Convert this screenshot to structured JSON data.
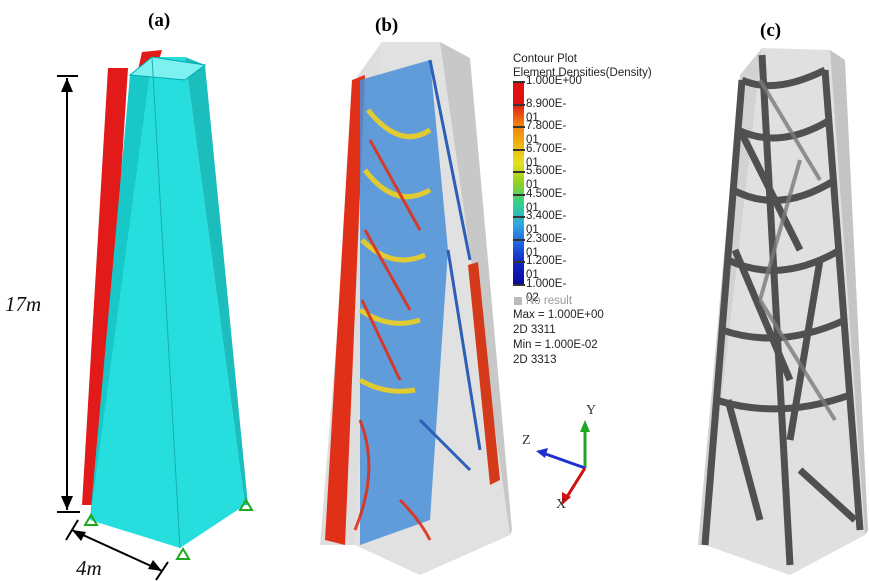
{
  "panels": {
    "a": {
      "label": "(a)",
      "height_label": "17m",
      "width_label": "4m"
    },
    "b": {
      "label": "(b)"
    },
    "c": {
      "label": "(c)"
    }
  },
  "legend": {
    "title_line1": "Contour Plot",
    "title_line2": "Element Densities(Density)",
    "values": [
      "1.000E+00",
      "8.900E-01",
      "7.800E-01",
      "6.700E-01",
      "5.600E-01",
      "4.500E-01",
      "3.400E-01",
      "2.300E-01",
      "1.200E-01",
      "1.000E-02"
    ],
    "no_result": "No result",
    "max_line": "Max = 1.000E+00",
    "max_elem": "2D 3311",
    "min_line": "Min = 1.000E-02",
    "min_elem": "2D 3313"
  },
  "triad": {
    "x": "X",
    "y": "Y",
    "z": "Z"
  },
  "colors": {
    "tower_cyan": "#1fd6d6",
    "load_red": "#e21a1a",
    "support_green": "#1fa81f",
    "gray_shell": "#cfcfcf",
    "member_dark": "#555555"
  }
}
